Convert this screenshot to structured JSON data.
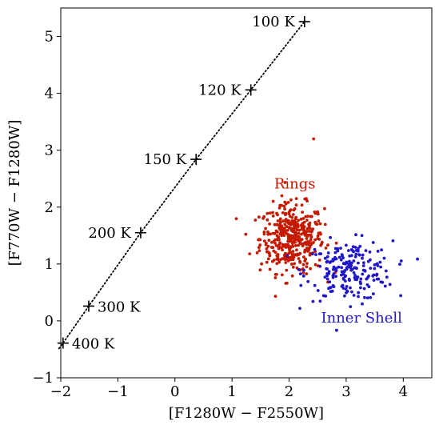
{
  "chart_data": {
    "type": "scatter",
    "xlabel": "[F1280W − F2550W]",
    "ylabel": "[F770W − F1280W]",
    "xlim": [
      -2,
      4.5
    ],
    "ylim": [
      -1,
      5.5
    ],
    "xticks": [
      -2,
      -1,
      0,
      1,
      2,
      3,
      4
    ],
    "yticks": [
      -1,
      0,
      1,
      2,
      3,
      4,
      5
    ],
    "xtick_labels": [
      "−2",
      "−1",
      "0",
      "1",
      "2",
      "3",
      "4"
    ],
    "ytick_labels": [
      "−1",
      "0",
      "1",
      "2",
      "3",
      "4",
      "5"
    ],
    "grid": false,
    "blackbody_track": {
      "line_style": "dotted",
      "color": "#000000",
      "points": [
        {
          "label": "100 K",
          "x": 2.27,
          "y": 5.26
        },
        {
          "label": "120 K",
          "x": 1.33,
          "y": 4.06
        },
        {
          "label": "150 K",
          "x": 0.37,
          "y": 2.84
        },
        {
          "label": "200 K",
          "x": -0.6,
          "y": 1.55
        },
        {
          "label": "300 K",
          "x": -1.51,
          "y": 0.26
        },
        {
          "label": "400 K",
          "x": -1.96,
          "y": -0.39
        }
      ]
    },
    "series": [
      {
        "name": "Rings",
        "color": "#c41a00",
        "center": [
          2.05,
          1.45
        ],
        "spread": [
          0.28,
          0.3
        ],
        "n_points": 420,
        "note_outlier": [
          2.43,
          3.2
        ]
      },
      {
        "name": "Inner Shell",
        "color": "#1f17c8",
        "center": [
          3.05,
          0.88
        ],
        "spread": [
          0.38,
          0.26
        ],
        "n_points": 210
      }
    ],
    "annotations": [
      {
        "text": "Rings",
        "color": "#c41a00",
        "x": 2.1,
        "y": 2.33
      },
      {
        "text": "Inner Shell",
        "color": "#1f17c8",
        "x": 3.27,
        "y": -0.03
      }
    ]
  }
}
